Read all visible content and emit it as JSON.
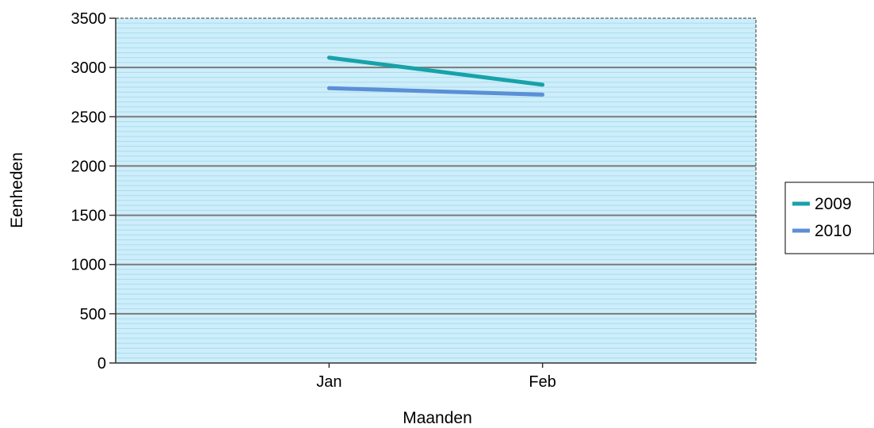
{
  "chart_data": {
    "type": "line",
    "title": "",
    "xlabel": "Maanden",
    "ylabel": "Eenheden",
    "categories": [
      "Jan",
      "Feb"
    ],
    "ylim": [
      0,
      3500
    ],
    "yticks": [
      0,
      500,
      1000,
      1500,
      2000,
      2500,
      3000,
      3500
    ],
    "grid": true,
    "legend_position": "right",
    "background_color": "#cdeefa",
    "series": [
      {
        "name": "2009",
        "color": "#17a2a8",
        "values": [
          3100,
          2825
        ]
      },
      {
        "name": "2010",
        "color": "#5b8fd6",
        "values": [
          2790,
          2725
        ]
      }
    ]
  }
}
